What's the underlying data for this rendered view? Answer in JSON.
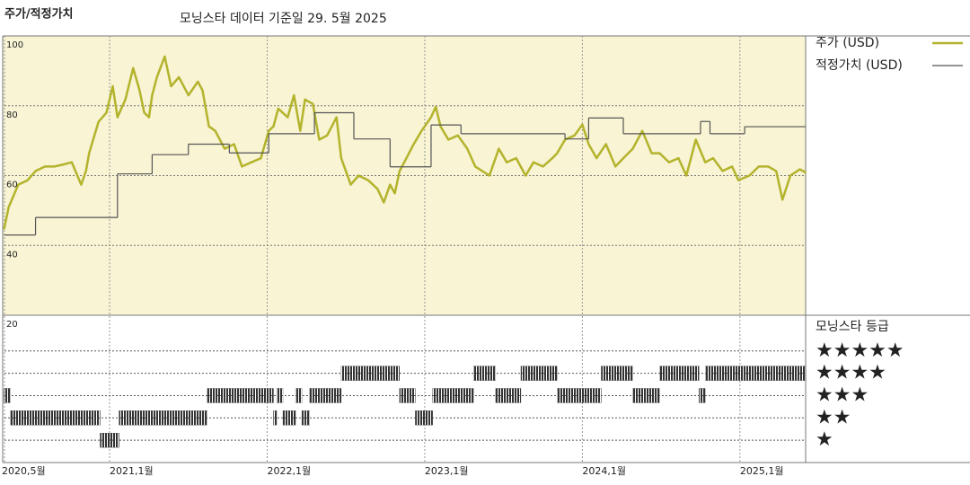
{
  "chart_data": {
    "type": "line",
    "title": "주가/적정가치",
    "subtitle": "모닝스타 데이터 기준일 29. 5월 2025",
    "xlim": [
      2020.333,
      2025.417
    ],
    "xticks": [
      {
        "value": 2020.333,
        "label": "2020,5월"
      },
      {
        "value": 2021.0,
        "label": "2021,1월"
      },
      {
        "value": 2022.0,
        "label": "2022,1월"
      },
      {
        "value": 2023.0,
        "label": "2023,1월"
      },
      {
        "value": 2024.0,
        "label": "2024,1월"
      },
      {
        "value": 2025.0,
        "label": "2025,1월"
      }
    ],
    "ylim": [
      20,
      100
    ],
    "yticks": [
      20,
      40,
      60,
      80,
      100
    ],
    "grid": true,
    "series": [
      {
        "name": "주가 (USD)",
        "color": "#b3b32c",
        "x": [
          2020.33,
          2020.36,
          2020.42,
          2020.48,
          2020.53,
          2020.59,
          2020.65,
          2020.7,
          2020.76,
          2020.82,
          2020.85,
          2020.87,
          2020.93,
          2020.98,
          2021.02,
          2021.05,
          2021.1,
          2021.15,
          2021.19,
          2021.22,
          2021.25,
          2021.27,
          2021.3,
          2021.35,
          2021.39,
          2021.44,
          2021.5,
          2021.56,
          2021.59,
          2021.63,
          2021.67,
          2021.73,
          2021.79,
          2021.84,
          2021.9,
          2021.96,
          2022.01,
          2022.04,
          2022.07,
          2022.13,
          2022.17,
          2022.21,
          2022.24,
          2022.29,
          2022.33,
          2022.38,
          2022.44,
          2022.47,
          2022.53,
          2022.58,
          2022.64,
          2022.7,
          2022.74,
          2022.78,
          2022.81,
          2022.84,
          2022.87,
          2022.93,
          2022.98,
          2023.04,
          2023.07,
          2023.1,
          2023.15,
          2023.21,
          2023.27,
          2023.32,
          2023.41,
          2023.47,
          2023.52,
          2023.58,
          2023.64,
          2023.69,
          2023.75,
          2023.81,
          2023.84,
          2023.89,
          2023.95,
          2024.0,
          2024.04,
          2024.09,
          2024.15,
          2024.21,
          2024.26,
          2024.32,
          2024.38,
          2024.44,
          2024.49,
          2024.55,
          2024.61,
          2024.66,
          2024.72,
          2024.78,
          2024.83,
          2024.89,
          2024.95,
          2024.99,
          2025.06,
          2025.12,
          2025.18,
          2025.23,
          2025.27,
          2025.32,
          2025.38,
          2025.42
        ],
        "values": [
          44.6,
          51,
          57.4,
          58.7,
          61.3,
          62.6,
          62.6,
          63.1,
          63.8,
          57.4,
          61.3,
          66.4,
          75.4,
          78,
          85.6,
          76.7,
          81.8,
          90.8,
          84.4,
          78,
          76.7,
          83,
          88.2,
          94.1,
          85.6,
          88.2,
          83,
          86.9,
          84.4,
          74.1,
          72.8,
          67.7,
          69,
          62.6,
          63.8,
          65,
          72.8,
          74.1,
          79.2,
          76.7,
          83,
          72.8,
          81.8,
          80.5,
          70.3,
          71.5,
          76.7,
          65,
          57.4,
          60,
          58.7,
          56.2,
          52.3,
          57.4,
          54.9,
          61.3,
          63.8,
          69,
          72.8,
          76.7,
          79.7,
          74.1,
          70.3,
          71.5,
          67.7,
          62.6,
          60,
          67.7,
          63.8,
          65,
          60,
          63.8,
          62.6,
          65,
          66.4,
          70.3,
          71.5,
          74.6,
          69,
          65,
          69,
          62.6,
          65,
          67.7,
          72.8,
          66.4,
          66.4,
          63.8,
          65,
          60,
          70.3,
          63.8,
          65,
          61.3,
          62.6,
          58.7,
          60,
          62.6,
          62.6,
          61.3,
          53.1,
          60,
          61.8,
          60.8
        ]
      },
      {
        "name": "적정가치 (USD)",
        "color": "#555555",
        "step": true,
        "x": [
          2020.33,
          2020.53,
          2021.05,
          2021.27,
          2021.5,
          2021.76,
          2022.01,
          2022.3,
          2022.55,
          2022.78,
          2023.04,
          2023.23,
          2023.89,
          2024.04,
          2024.26,
          2024.75,
          2024.81,
          2025.03
        ],
        "values": [
          43,
          48,
          60.5,
          66,
          69,
          66.5,
          72,
          78,
          70.5,
          62.5,
          74.5,
          72,
          70.5,
          76.5,
          72,
          75.5,
          72,
          74
        ]
      }
    ],
    "rating": {
      "title": "모닝스타 등급",
      "color": "#333333",
      "ylim": [
        0,
        6.6
      ],
      "yticks": [
        {
          "value": 5,
          "label": "★★★★★"
        },
        {
          "value": 4,
          "label": "★★★★"
        },
        {
          "value": 3,
          "label": "★★★"
        },
        {
          "value": 2,
          "label": "★★"
        },
        {
          "value": 1,
          "label": "★"
        }
      ],
      "x": [
        2020.33,
        2020.37,
        2020.94,
        2021.06,
        2021.62,
        2022.04,
        2022.06,
        2022.1,
        2022.18,
        2022.22,
        2022.27,
        2022.47,
        2022.84,
        2022.94,
        2023.05,
        2023.31,
        2023.45,
        2023.61,
        2023.84,
        2024.12,
        2024.32,
        2024.49,
        2024.74,
        2024.78
      ],
      "values": [
        3,
        2,
        1,
        2,
        3,
        2,
        3,
        2,
        3,
        2,
        3,
        4,
        3,
        2,
        3,
        4,
        3,
        4,
        3,
        4,
        3,
        4,
        3,
        4
      ]
    }
  }
}
